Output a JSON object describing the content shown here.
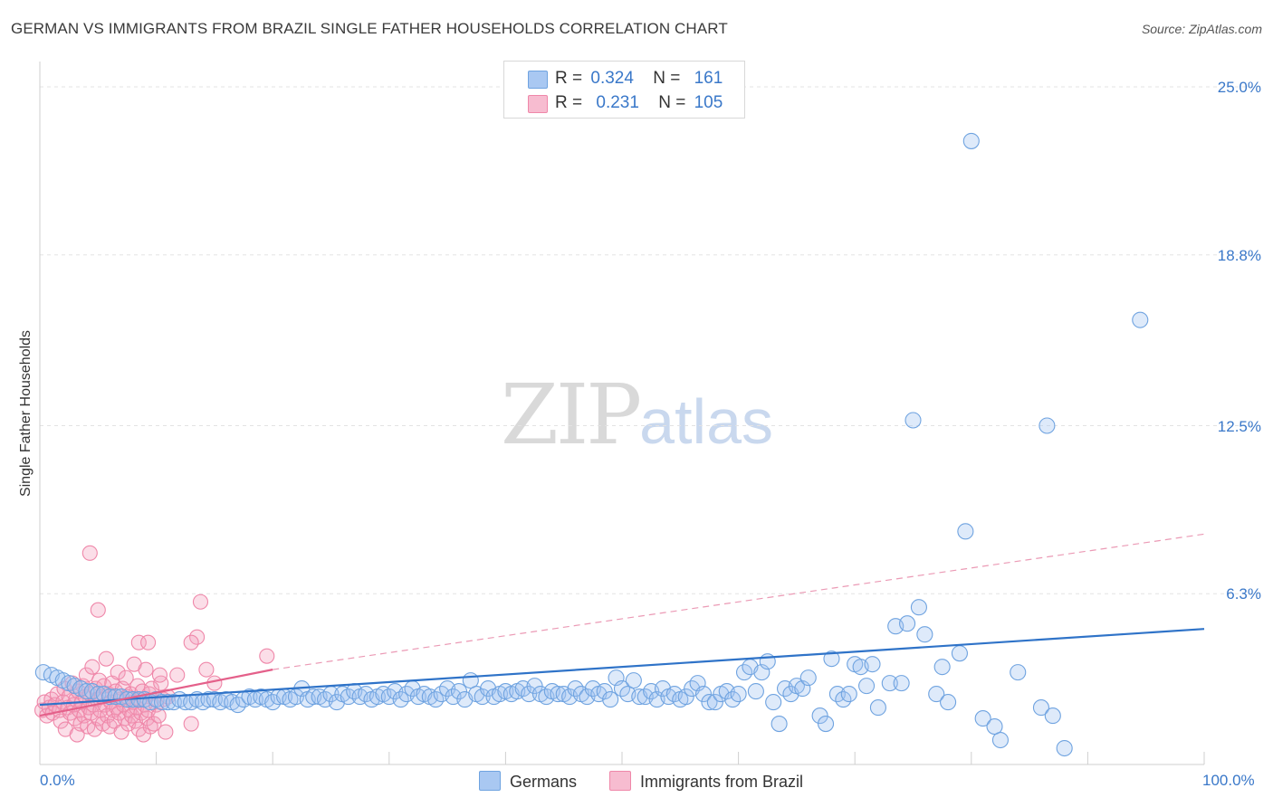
{
  "title": "GERMAN VS IMMIGRANTS FROM BRAZIL SINGLE FATHER HOUSEHOLDS CORRELATION CHART",
  "source": "Source: ZipAtlas.com",
  "watermark": {
    "zip": "ZIP",
    "atlas": "atlas"
  },
  "colors": {
    "blue": "#6fa3e0",
    "blue_line": "#2f73c8",
    "pink": "#ef87a9",
    "pink_line": "#e4608a",
    "axis_text": "#3a78c9"
  },
  "legend": {
    "rows": [
      {
        "r_label": "R =",
        "r_value": "0.324",
        "n_label": "N =",
        "n_value": "161",
        "color": "#a9c8f2"
      },
      {
        "r_label": "R =",
        "r_value": "0.231",
        "n_label": "N =",
        "n_value": "105",
        "color": "#f7bcd0"
      }
    ]
  },
  "bottom_legend": [
    {
      "label": "Germans",
      "color": "#a9c8f2"
    },
    {
      "label": "Immigrants from Brazil",
      "color": "#f7bcd0"
    }
  ],
  "chart_data": {
    "type": "scatter",
    "title": "GERMAN VS IMMIGRANTS FROM BRAZIL SINGLE FATHER HOUSEHOLDS CORRELATION CHART",
    "xlabel": "",
    "ylabel": "Single Father Households",
    "xlim": [
      0,
      100
    ],
    "ylim": [
      0,
      25
    ],
    "x_tick_labels": [
      "0.0%",
      "100.0%"
    ],
    "y_ticks": [
      6.3,
      12.5,
      18.8,
      25.0
    ],
    "y_tick_labels": [
      "6.3%",
      "12.5%",
      "18.8%",
      "25.0%"
    ],
    "grid": true,
    "series": [
      {
        "name": "Germans",
        "r": 0.324,
        "n": 161,
        "trend": {
          "x": [
            0,
            100
          ],
          "y": [
            2.2,
            5.0
          ],
          "style": "solid"
        },
        "points": [
          [
            0.3,
            3.4
          ],
          [
            1.0,
            3.3
          ],
          [
            1.5,
            3.2
          ],
          [
            2.0,
            3.1
          ],
          [
            2.5,
            3.0
          ],
          [
            3.0,
            2.9
          ],
          [
            3.5,
            2.8
          ],
          [
            4.0,
            2.7
          ],
          [
            4.5,
            2.7
          ],
          [
            5.0,
            2.6
          ],
          [
            5.5,
            2.6
          ],
          [
            6.0,
            2.5
          ],
          [
            6.5,
            2.5
          ],
          [
            7.0,
            2.5
          ],
          [
            7.5,
            2.4
          ],
          [
            8.0,
            2.4
          ],
          [
            8.5,
            2.4
          ],
          [
            9.0,
            2.4
          ],
          [
            9.5,
            2.3
          ],
          [
            10.0,
            2.4
          ],
          [
            10.5,
            2.3
          ],
          [
            11.0,
            2.3
          ],
          [
            11.5,
            2.3
          ],
          [
            12.0,
            2.4
          ],
          [
            12.5,
            2.3
          ],
          [
            13.0,
            2.3
          ],
          [
            13.5,
            2.4
          ],
          [
            14.0,
            2.3
          ],
          [
            14.5,
            2.4
          ],
          [
            15.0,
            2.4
          ],
          [
            15.5,
            2.3
          ],
          [
            16.0,
            2.4
          ],
          [
            16.5,
            2.3
          ],
          [
            17.0,
            2.2
          ],
          [
            17.5,
            2.4
          ],
          [
            18.0,
            2.5
          ],
          [
            18.5,
            2.4
          ],
          [
            19.0,
            2.5
          ],
          [
            19.5,
            2.4
          ],
          [
            20.0,
            2.3
          ],
          [
            20.5,
            2.5
          ],
          [
            21.0,
            2.5
          ],
          [
            21.5,
            2.4
          ],
          [
            22.0,
            2.5
          ],
          [
            22.5,
            2.8
          ],
          [
            23.0,
            2.4
          ],
          [
            23.5,
            2.5
          ],
          [
            24.0,
            2.5
          ],
          [
            24.5,
            2.4
          ],
          [
            25.0,
            2.6
          ],
          [
            25.5,
            2.3
          ],
          [
            26.0,
            2.6
          ],
          [
            26.5,
            2.5
          ],
          [
            27.0,
            2.7
          ],
          [
            27.5,
            2.5
          ],
          [
            28.0,
            2.6
          ],
          [
            28.5,
            2.4
          ],
          [
            29.0,
            2.5
          ],
          [
            29.5,
            2.6
          ],
          [
            30.0,
            2.5
          ],
          [
            30.5,
            2.7
          ],
          [
            31.0,
            2.4
          ],
          [
            31.5,
            2.6
          ],
          [
            32.0,
            2.8
          ],
          [
            32.5,
            2.5
          ],
          [
            33.0,
            2.6
          ],
          [
            33.5,
            2.5
          ],
          [
            34.0,
            2.4
          ],
          [
            34.5,
            2.6
          ],
          [
            35.0,
            2.8
          ],
          [
            35.5,
            2.5
          ],
          [
            36.0,
            2.7
          ],
          [
            36.5,
            2.4
          ],
          [
            37.0,
            3.1
          ],
          [
            37.5,
            2.6
          ],
          [
            38.0,
            2.5
          ],
          [
            38.5,
            2.8
          ],
          [
            39.0,
            2.5
          ],
          [
            39.5,
            2.6
          ],
          [
            40.0,
            2.7
          ],
          [
            40.5,
            2.6
          ],
          [
            41.0,
            2.7
          ],
          [
            41.5,
            2.8
          ],
          [
            42.0,
            2.6
          ],
          [
            42.5,
            2.9
          ],
          [
            43.0,
            2.6
          ],
          [
            43.5,
            2.5
          ],
          [
            44.0,
            2.7
          ],
          [
            44.5,
            2.6
          ],
          [
            45.0,
            2.6
          ],
          [
            45.5,
            2.5
          ],
          [
            46.0,
            2.8
          ],
          [
            46.5,
            2.6
          ],
          [
            47.0,
            2.5
          ],
          [
            47.5,
            2.8
          ],
          [
            48.0,
            2.6
          ],
          [
            48.5,
            2.7
          ],
          [
            49.0,
            2.4
          ],
          [
            49.5,
            3.2
          ],
          [
            50.0,
            2.8
          ],
          [
            50.5,
            2.6
          ],
          [
            51.0,
            3.1
          ],
          [
            51.5,
            2.5
          ],
          [
            52.0,
            2.5
          ],
          [
            52.5,
            2.7
          ],
          [
            53.0,
            2.4
          ],
          [
            53.5,
            2.8
          ],
          [
            54.0,
            2.5
          ],
          [
            54.5,
            2.6
          ],
          [
            55.0,
            2.4
          ],
          [
            55.5,
            2.5
          ],
          [
            56.0,
            2.8
          ],
          [
            56.5,
            3.0
          ],
          [
            57.0,
            2.6
          ],
          [
            57.5,
            2.3
          ],
          [
            58.0,
            2.3
          ],
          [
            58.5,
            2.6
          ],
          [
            59.0,
            2.7
          ],
          [
            59.5,
            2.4
          ],
          [
            60.0,
            2.6
          ],
          [
            60.5,
            3.4
          ],
          [
            61.0,
            3.6
          ],
          [
            61.5,
            2.7
          ],
          [
            62.0,
            3.4
          ],
          [
            62.5,
            3.8
          ],
          [
            63.0,
            2.3
          ],
          [
            63.5,
            1.5
          ],
          [
            64.0,
            2.8
          ],
          [
            64.5,
            2.6
          ],
          [
            65.0,
            2.9
          ],
          [
            65.5,
            2.8
          ],
          [
            66.0,
            3.2
          ],
          [
            67.0,
            1.8
          ],
          [
            67.5,
            1.5
          ],
          [
            68.0,
            3.9
          ],
          [
            68.5,
            2.6
          ],
          [
            69.0,
            2.4
          ],
          [
            69.5,
            2.6
          ],
          [
            70.0,
            3.7
          ],
          [
            70.5,
            3.6
          ],
          [
            71.0,
            2.9
          ],
          [
            71.5,
            3.7
          ],
          [
            72.0,
            2.1
          ],
          [
            73.0,
            3.0
          ],
          [
            73.5,
            5.1
          ],
          [
            74.0,
            3.0
          ],
          [
            74.5,
            5.2
          ],
          [
            75.0,
            12.7
          ],
          [
            75.5,
            5.8
          ],
          [
            76.0,
            4.8
          ],
          [
            77.0,
            2.6
          ],
          [
            77.5,
            3.6
          ],
          [
            78.0,
            2.3
          ],
          [
            79.0,
            4.1
          ],
          [
            79.5,
            8.6
          ],
          [
            80.0,
            23.0
          ],
          [
            81.0,
            1.7
          ],
          [
            82.0,
            1.4
          ],
          [
            82.5,
            0.9
          ],
          [
            84.0,
            3.4
          ],
          [
            86.0,
            2.1
          ],
          [
            86.5,
            12.5
          ],
          [
            87.0,
            1.8
          ],
          [
            88.0,
            0.6
          ],
          [
            94.5,
            16.4
          ]
        ]
      },
      {
        "name": "Immigrants from Brazil",
        "r": 0.231,
        "n": 105,
        "trend": {
          "x": [
            0,
            20,
            100
          ],
          "y": [
            1.8,
            3.5,
            8.5
          ],
          "solid_until": 20,
          "style": "solid then dashed"
        },
        "points": [
          [
            0.2,
            2.0
          ],
          [
            0.4,
            2.3
          ],
          [
            0.6,
            1.8
          ],
          [
            0.8,
            2.1
          ],
          [
            1.0,
            2.4
          ],
          [
            1.1,
            1.9
          ],
          [
            1.3,
            2.2
          ],
          [
            1.5,
            2.6
          ],
          [
            1.7,
            2.0
          ],
          [
            1.8,
            1.6
          ],
          [
            2.0,
            2.3
          ],
          [
            2.1,
            2.8
          ],
          [
            2.2,
            1.3
          ],
          [
            2.4,
            2.1
          ],
          [
            2.5,
            2.5
          ],
          [
            2.6,
            1.9
          ],
          [
            2.8,
            3.0
          ],
          [
            2.9,
            2.2
          ],
          [
            3.0,
            1.7
          ],
          [
            3.1,
            2.4
          ],
          [
            3.2,
            1.1
          ],
          [
            3.3,
            2.7
          ],
          [
            3.4,
            2.0
          ],
          [
            3.5,
            1.5
          ],
          [
            3.6,
            2.3
          ],
          [
            3.7,
            2.9
          ],
          [
            3.8,
            1.8
          ],
          [
            3.9,
            2.5
          ],
          [
            4.0,
            3.3
          ],
          [
            4.1,
            1.4
          ],
          [
            4.2,
            2.1
          ],
          [
            4.3,
            2.6
          ],
          [
            4.4,
            1.9
          ],
          [
            4.5,
            3.6
          ],
          [
            4.6,
            2.2
          ],
          [
            4.7,
            1.3
          ],
          [
            4.8,
            2.8
          ],
          [
            4.9,
            2.4
          ],
          [
            5.0,
            1.7
          ],
          [
            5.1,
            3.1
          ],
          [
            5.2,
            2.0
          ],
          [
            5.3,
            2.5
          ],
          [
            5.4,
            1.5
          ],
          [
            5.5,
            2.9
          ],
          [
            5.6,
            2.2
          ],
          [
            5.7,
            3.9
          ],
          [
            5.8,
            1.8
          ],
          [
            5.9,
            2.6
          ],
          [
            6.0,
            1.4
          ],
          [
            6.1,
            2.3
          ],
          [
            6.2,
            3.0
          ],
          [
            6.3,
            2.0
          ],
          [
            6.4,
            1.6
          ],
          [
            6.5,
            2.7
          ],
          [
            6.6,
            2.1
          ],
          [
            6.7,
            3.4
          ],
          [
            6.8,
            1.9
          ],
          [
            6.9,
            2.4
          ],
          [
            7.0,
            1.2
          ],
          [
            7.1,
            2.8
          ],
          [
            7.2,
            2.2
          ],
          [
            7.3,
            1.7
          ],
          [
            7.4,
            3.2
          ],
          [
            7.5,
            2.5
          ],
          [
            7.6,
            1.5
          ],
          [
            7.7,
            2.0
          ],
          [
            7.8,
            2.6
          ],
          [
            7.9,
            1.8
          ],
          [
            8.0,
            2.3
          ],
          [
            8.1,
            3.7
          ],
          [
            8.2,
            1.6
          ],
          [
            8.3,
            2.1
          ],
          [
            8.4,
            2.9
          ],
          [
            8.5,
            1.3
          ],
          [
            8.6,
            2.4
          ],
          [
            8.7,
            1.9
          ],
          [
            8.8,
            2.7
          ],
          [
            8.9,
            1.1
          ],
          [
            9.0,
            2.2
          ],
          [
            9.1,
            3.5
          ],
          [
            9.2,
            1.7
          ],
          [
            9.3,
            2.0
          ],
          [
            9.4,
            2.6
          ],
          [
            9.5,
            1.4
          ],
          [
            9.6,
            2.8
          ],
          [
            9.8,
            1.5
          ],
          [
            10.0,
            2.2
          ],
          [
            10.2,
            1.8
          ],
          [
            10.4,
            3.0
          ],
          [
            10.6,
            2.4
          ],
          [
            10.8,
            1.2
          ],
          [
            11.0,
            2.5
          ],
          [
            4.3,
            7.8
          ],
          [
            5.0,
            5.7
          ],
          [
            13.8,
            6.0
          ],
          [
            13.5,
            4.7
          ],
          [
            13.0,
            4.5
          ],
          [
            8.5,
            4.5
          ],
          [
            9.3,
            4.5
          ],
          [
            10.3,
            3.3
          ],
          [
            11.8,
            3.3
          ],
          [
            14.3,
            3.5
          ],
          [
            15.0,
            3.0
          ],
          [
            19.5,
            4.0
          ],
          [
            13.0,
            1.5
          ]
        ]
      }
    ]
  }
}
